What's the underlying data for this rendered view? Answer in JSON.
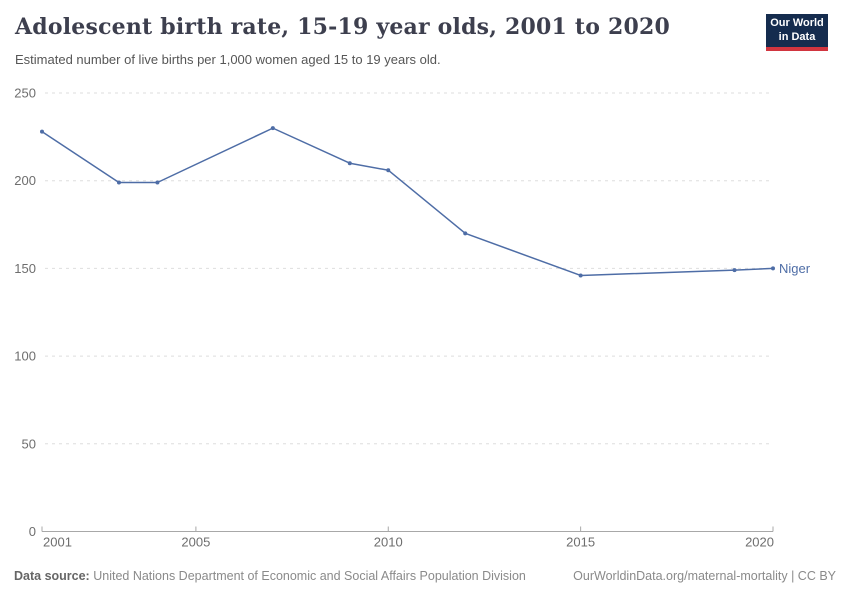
{
  "header": {
    "title": "Adolescent birth rate, 15-19 year olds, 2001 to 2020",
    "subtitle": "Estimated number of live births per 1,000 women aged 15 to 19 years old.",
    "logo": {
      "line1": "Our World",
      "line2": "in Data",
      "background_color": "#152c4e",
      "accent_color": "#d1353f"
    }
  },
  "chart_data": {
    "type": "line",
    "title": "Adolescent birth rate, 15-19 year olds, 2001 to 2020",
    "subtitle": "Estimated number of live births per 1,000 women aged 15 to 19 years old.",
    "xlabel": "",
    "ylabel": "",
    "xlim": [
      2001,
      2020
    ],
    "ylim": [
      0,
      250
    ],
    "x_ticks": [
      2001,
      2005,
      2010,
      2015,
      2020
    ],
    "y_ticks": [
      0,
      50,
      100,
      150,
      200,
      250
    ],
    "grid": "horizontal dashed gridlines, solid baseline at 0",
    "legend_position": "end-of-line entity label",
    "series": [
      {
        "name": "Niger",
        "color": "#4e6da6",
        "points": [
          [
            2001,
            228
          ],
          [
            2003,
            199
          ],
          [
            2004,
            199
          ],
          [
            2007,
            230
          ],
          [
            2009,
            210
          ],
          [
            2010,
            206
          ],
          [
            2012,
            170
          ],
          [
            2015,
            146
          ],
          [
            2019,
            149
          ],
          [
            2020,
            150
          ]
        ]
      }
    ],
    "colors": {
      "gridline": "#dedede",
      "axis": "#a8a8a8",
      "tick_label": "#6e6e6e"
    }
  },
  "footer": {
    "source_label": "Data source:",
    "source_text": "United Nations Department of Economic and Social Affairs Population Division",
    "link_text": "OurWorldinData.org/maternal-mortality | CC BY"
  }
}
